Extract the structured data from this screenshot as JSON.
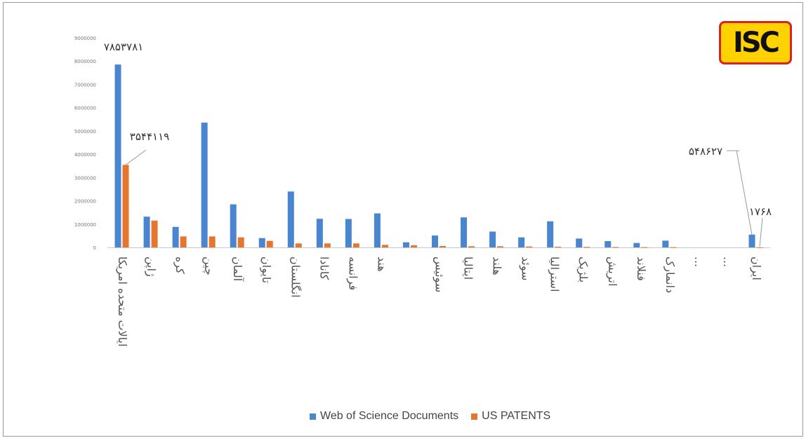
{
  "logo": {
    "text": "ISC"
  },
  "legend": {
    "items": [
      {
        "label": "Web of Science Documents",
        "color": "#4a86d0"
      },
      {
        "label": "US PATENTS",
        "color": "#e5762e"
      }
    ]
  },
  "chart_data": {
    "type": "bar",
    "ylim": [
      0,
      9000000
    ],
    "yticks": [
      {
        "value": 0,
        "label": "0"
      },
      {
        "value": 1000000,
        "label": "1000000"
      },
      {
        "value": 2000000,
        "label": "2000000"
      },
      {
        "value": 3000000,
        "label": "3000000"
      },
      {
        "value": 4000000,
        "label": "4000000"
      },
      {
        "value": 5000000,
        "label": "5000000"
      },
      {
        "value": 6000000,
        "label": "6000000"
      },
      {
        "value": 7000000,
        "label": "7000000"
      },
      {
        "value": 8000000,
        "label": "8000000"
      },
      {
        "value": 9000000,
        "label": "9000000"
      }
    ],
    "categories": [
      "ایالات متحده امریکا",
      "ژاپن",
      "کره",
      "چین",
      "آلمان",
      "تایوان",
      "انگلستان",
      "کانادا",
      "فرانسه",
      "هند",
      "",
      "سوئیس",
      "ایتالیا",
      "هلند",
      "سوئد",
      "استرالیا",
      "بلژیک",
      "اتریش",
      "فنلاند",
      "دانمارک",
      "...",
      "...",
      "ایران"
    ],
    "series": [
      {
        "name": "Web of Science Documents",
        "color": "#4a86d0",
        "values": [
          7853781,
          1320000,
          880000,
          5360000,
          1850000,
          400000,
          2400000,
          1230000,
          1220000,
          1460000,
          220000,
          510000,
          1290000,
          680000,
          430000,
          1120000,
          380000,
          270000,
          190000,
          290000,
          0,
          0,
          548627
        ]
      },
      {
        "name": "US PATENTS",
        "color": "#e5762e",
        "values": [
          3544119,
          1150000,
          470000,
          470000,
          430000,
          280000,
          170000,
          170000,
          170000,
          110000,
          90000,
          60000,
          50000,
          50000,
          40000,
          30000,
          20000,
          15000,
          10000,
          10000,
          0,
          0,
          1768
        ]
      }
    ],
    "annotations": [
      {
        "label": "۷۸۵۳۷۸۱",
        "series": 0,
        "index": 0
      },
      {
        "label": "۳۵۴۴۱۱۹",
        "series": 1,
        "index": 0
      },
      {
        "label": "۵۴۸۶۲۷",
        "series": 0,
        "index": 22
      },
      {
        "label": "۱۷۶۸",
        "series": 1,
        "index": 22
      }
    ],
    "grid": false,
    "legend_position": "bottom"
  }
}
